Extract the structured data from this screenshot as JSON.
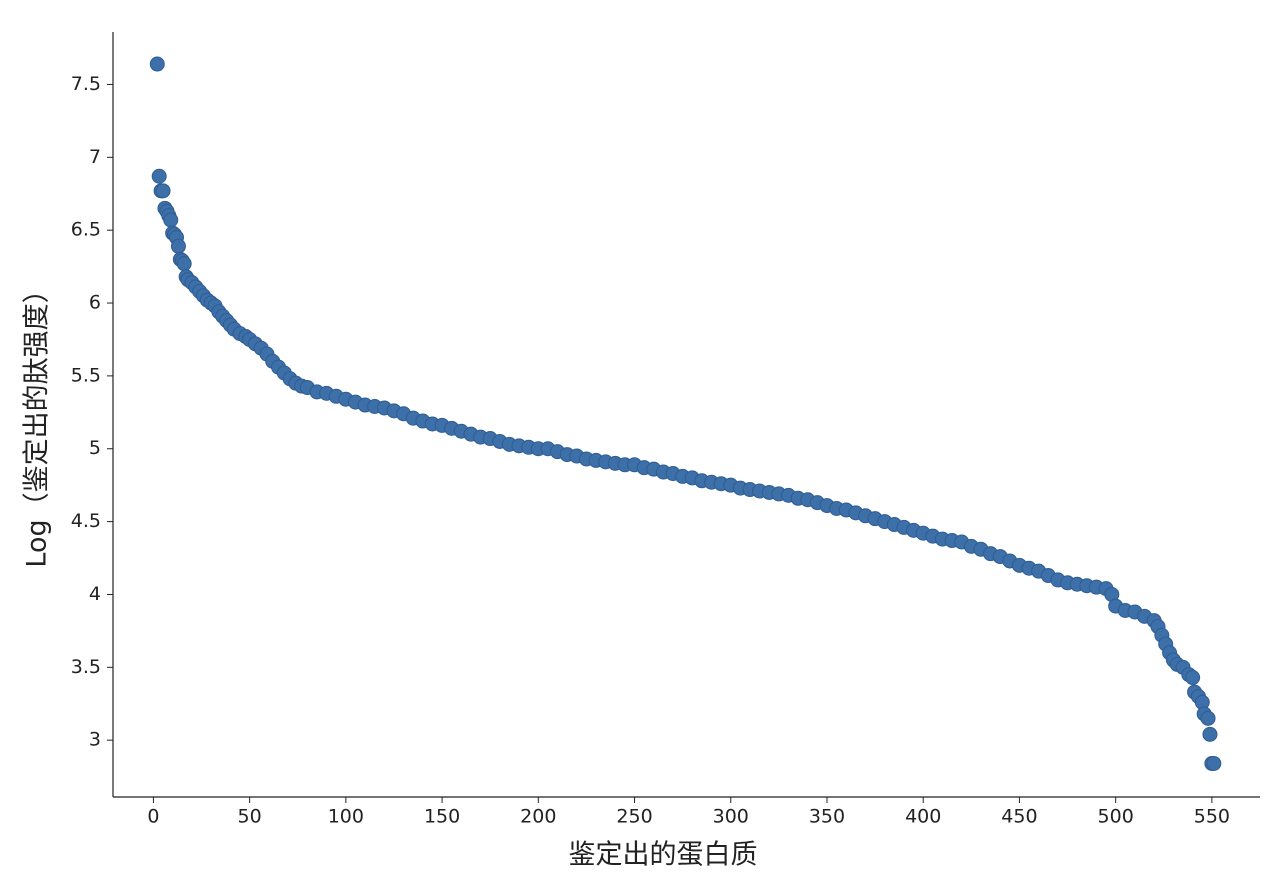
{
  "chart_data": {
    "type": "scatter",
    "x_label": "鉴定出的蛋白质",
    "y_label": "Log（鉴定出的肽强度）",
    "color": "#3d6fa8",
    "xlim": [
      -21,
      575
    ],
    "ylim": [
      2.61,
      7.86
    ],
    "xticks": [
      0,
      50,
      100,
      150,
      200,
      250,
      300,
      350,
      400,
      450,
      500,
      550
    ],
    "yticks": [
      3,
      3.5,
      4,
      4.5,
      5,
      5.5,
      6,
      6.5,
      7,
      7.5
    ],
    "grid": false,
    "x": [
      2,
      3,
      4,
      5,
      6,
      7,
      8,
      9,
      10,
      11,
      12,
      13,
      14,
      15,
      16,
      17,
      18,
      20,
      22,
      24,
      26,
      28,
      30,
      32,
      34,
      36,
      38,
      40,
      42,
      45,
      48,
      50,
      53,
      56,
      59,
      62,
      65,
      68,
      71,
      74,
      77,
      80,
      85,
      90,
      95,
      100,
      105,
      110,
      115,
      120,
      125,
      130,
      135,
      140,
      145,
      150,
      155,
      160,
      165,
      170,
      175,
      180,
      185,
      190,
      195,
      200,
      205,
      210,
      215,
      220,
      225,
      230,
      235,
      240,
      245,
      250,
      255,
      260,
      265,
      270,
      275,
      280,
      285,
      290,
      295,
      300,
      305,
      310,
      315,
      320,
      325,
      330,
      335,
      340,
      345,
      350,
      355,
      360,
      365,
      370,
      375,
      380,
      385,
      390,
      395,
      400,
      405,
      410,
      415,
      420,
      425,
      430,
      435,
      440,
      445,
      450,
      455,
      460,
      465,
      470,
      475,
      480,
      485,
      490,
      495,
      498,
      500,
      505,
      510,
      515,
      520,
      522,
      524,
      526,
      528,
      530,
      532,
      535,
      538,
      540,
      541,
      543,
      545,
      546,
      548,
      549,
      550,
      551
    ],
    "y": [
      7.64,
      6.87,
      6.77,
      6.77,
      6.65,
      6.63,
      6.6,
      6.57,
      6.48,
      6.47,
      6.45,
      6.39,
      6.3,
      6.29,
      6.27,
      6.18,
      6.16,
      6.14,
      6.11,
      6.08,
      6.05,
      6.02,
      6.0,
      5.98,
      5.94,
      5.91,
      5.88,
      5.85,
      5.82,
      5.79,
      5.77,
      5.75,
      5.72,
      5.69,
      5.65,
      5.6,
      5.56,
      5.52,
      5.48,
      5.45,
      5.43,
      5.42,
      5.39,
      5.38,
      5.36,
      5.34,
      5.32,
      5.3,
      5.29,
      5.28,
      5.26,
      5.24,
      5.21,
      5.19,
      5.17,
      5.16,
      5.14,
      5.12,
      5.1,
      5.08,
      5.07,
      5.05,
      5.03,
      5.02,
      5.01,
      5.0,
      5.0,
      4.98,
      4.96,
      4.95,
      4.93,
      4.92,
      4.91,
      4.9,
      4.89,
      4.89,
      4.87,
      4.86,
      4.84,
      4.83,
      4.81,
      4.8,
      4.78,
      4.77,
      4.76,
      4.75,
      4.73,
      4.72,
      4.71,
      4.7,
      4.69,
      4.68,
      4.66,
      4.65,
      4.63,
      4.61,
      4.59,
      4.58,
      4.56,
      4.54,
      4.52,
      4.5,
      4.48,
      4.46,
      4.44,
      4.42,
      4.4,
      4.38,
      4.37,
      4.36,
      4.33,
      4.31,
      4.28,
      4.26,
      4.23,
      4.2,
      4.18,
      4.16,
      4.13,
      4.1,
      4.08,
      4.07,
      4.06,
      4.05,
      4.04,
      4.0,
      3.92,
      3.89,
      3.88,
      3.85,
      3.82,
      3.78,
      3.72,
      3.66,
      3.6,
      3.55,
      3.52,
      3.5,
      3.45,
      3.43,
      3.33,
      3.3,
      3.26,
      3.18,
      3.15,
      3.04,
      2.84,
      2.84
    ]
  }
}
